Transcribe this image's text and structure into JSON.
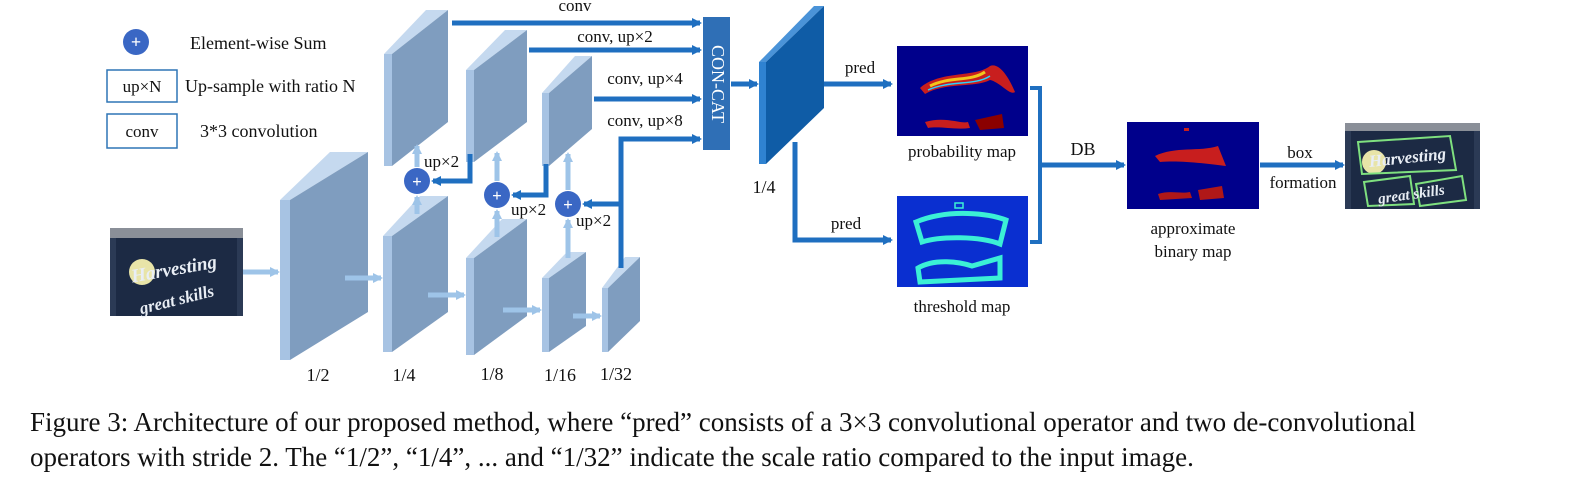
{
  "legend": {
    "sum_symbol": "+",
    "sum_label": "Element-wise Sum",
    "up_box": "up×N",
    "up_label": "Up-sample with ratio N",
    "conv_box": "conv",
    "conv_label": "3*3 convolution"
  },
  "backbone": {
    "scales": [
      "1/2",
      "1/4",
      "1/8",
      "1/16",
      "1/32"
    ]
  },
  "fpn": {
    "merge_labels": [
      "up×2",
      "up×2",
      "up×2"
    ],
    "branch_labels": [
      "conv",
      "conv, up×2",
      "conv, up×4",
      "conv, up×8"
    ],
    "concat_label": "CON-CAT",
    "concat_scale": "1/4"
  },
  "heads": {
    "pred_label": "pred",
    "probability_map": "probability map",
    "threshold_map": "threshold map",
    "db_label": "DB",
    "approx_line1": "approximate",
    "approx_line2": "binary map",
    "box_line1": "box",
    "box_line2": "formation"
  },
  "input_image": {
    "text_line1": "Harvesting",
    "text_line2": "great skills"
  },
  "caption": {
    "line1": "Figure 3: Architecture of our proposed method, where “pred” consists of a 3×3 convolutional operator and two de-convolutional",
    "line2": "operators with stride 2. The “1/2”, “1/4”, ... and “1/32” indicate the scale ratio compared to the input image."
  },
  "colors": {
    "feature_front": "#7f9dbf",
    "feature_side": "#a7c3e3",
    "arrow_dark": "#1f6fc0",
    "arrow_light": "#9ec4e8",
    "concat_fill": "#2f6fb6",
    "concat_feature_front": "#0f5ca6",
    "concat_feature_side": "#2f82d1",
    "sum_circle": "#3a67c4",
    "map_background": "#00008b"
  }
}
